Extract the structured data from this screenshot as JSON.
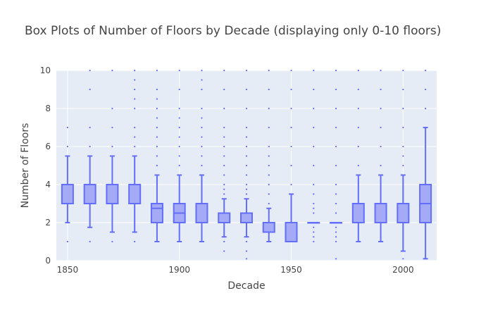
{
  "chart_data": {
    "type": "box",
    "title": "Box Plots of Number of Floors by Decade (displaying only 0-10 floors)",
    "xlabel": "Decade",
    "ylabel": "Number of Floors",
    "xlim": [
      1845,
      2015
    ],
    "ylim": [
      0,
      10
    ],
    "xticks": [
      1850,
      1900,
      1950,
      2000
    ],
    "yticks": [
      0,
      2,
      4,
      6,
      8,
      10
    ],
    "grid": true,
    "legend": "none",
    "colors": {
      "plot_bg": "#e5ecf6",
      "box_line": "#636efa",
      "box_fill": "#a4aaf5",
      "grid": "#ffffff"
    },
    "boxes": [
      {
        "decade": 1850,
        "q1": 3,
        "median": 3,
        "q3": 4,
        "lower": 2,
        "upper": 5.5,
        "outliers": [
          1,
          6,
          7
        ]
      },
      {
        "decade": 1860,
        "q1": 3,
        "median": 3,
        "q3": 4,
        "lower": 1.75,
        "upper": 5.5,
        "outliers": [
          1,
          6,
          7,
          9,
          10
        ]
      },
      {
        "decade": 1870,
        "q1": 3,
        "median": 3,
        "q3": 4,
        "lower": 1.5,
        "upper": 5.5,
        "outliers": [
          1,
          6,
          7,
          8,
          10
        ]
      },
      {
        "decade": 1880,
        "q1": 3,
        "median": 3,
        "q3": 4,
        "lower": 1.5,
        "upper": 5.5,
        "outliers": [
          1,
          6,
          6.5,
          7,
          8,
          8.5,
          9,
          9.5,
          10
        ]
      },
      {
        "decade": 1890,
        "q1": 2,
        "median": 2.75,
        "q3": 3,
        "lower": 1,
        "upper": 4.5,
        "outliers": [
          5,
          5.5,
          6,
          6.5,
          7,
          7.5,
          8,
          8.5,
          9,
          10
        ]
      },
      {
        "decade": 1900,
        "q1": 2,
        "median": 2.5,
        "q3": 3,
        "lower": 1,
        "upper": 4.5,
        "outliers": [
          5,
          5.5,
          6,
          6.5,
          7,
          7.5,
          8,
          9,
          10
        ]
      },
      {
        "decade": 1910,
        "q1": 2,
        "median": 2,
        "q3": 3,
        "lower": 1,
        "upper": 4.5,
        "outliers": [
          5,
          5.5,
          6,
          6.5,
          7,
          7.5,
          8,
          9,
          9.5,
          10
        ]
      },
      {
        "decade": 1920,
        "q1": 2,
        "median": 2,
        "q3": 2.5,
        "lower": 1.25,
        "upper": 3.25,
        "outliers": [
          0.5,
          1,
          3.5,
          3.75,
          4,
          4.5,
          5,
          5.5,
          6,
          6.5,
          7,
          8,
          9,
          10
        ]
      },
      {
        "decade": 1930,
        "q1": 2,
        "median": 2,
        "q3": 2.5,
        "lower": 1.25,
        "upper": 3.25,
        "outliers": [
          0.1,
          0.5,
          1,
          3.5,
          3.75,
          4,
          4.5,
          5,
          5.5,
          6,
          6.5,
          7,
          8,
          9,
          10
        ]
      },
      {
        "decade": 1940,
        "q1": 1.5,
        "median": 2,
        "q3": 2,
        "lower": 1,
        "upper": 2.75,
        "outliers": [
          3,
          3.5,
          4,
          4.5,
          5,
          5.5,
          6,
          7,
          8,
          9,
          10
        ]
      },
      {
        "decade": 1950,
        "q1": 1,
        "median": 2,
        "q3": 2,
        "lower": 1,
        "upper": 3.5,
        "outliers": [
          4,
          5,
          6,
          7,
          8,
          9,
          10
        ]
      },
      {
        "decade": 1960,
        "q1": 2,
        "median": 2,
        "q3": 2,
        "lower": 2,
        "upper": 2,
        "outliers": [
          1,
          1.25,
          1.5,
          1.75,
          2.5,
          2.75,
          3,
          3.5,
          4,
          5,
          6,
          7,
          8,
          9,
          10
        ]
      },
      {
        "decade": 1970,
        "q1": 2,
        "median": 2,
        "q3": 2,
        "lower": 2,
        "upper": 2,
        "outliers": [
          0.1,
          1,
          1.25,
          1.5,
          1.75,
          2.5,
          3,
          3.5,
          4,
          5,
          6,
          7,
          8,
          9,
          10
        ]
      },
      {
        "decade": 1980,
        "q1": 2,
        "median": 2,
        "q3": 3,
        "lower": 1,
        "upper": 4.5,
        "outliers": [
          5,
          6,
          7,
          8,
          9,
          10
        ]
      },
      {
        "decade": 1990,
        "q1": 2,
        "median": 2,
        "q3": 3,
        "lower": 1,
        "upper": 4.5,
        "outliers": [
          5,
          6,
          7,
          8,
          9,
          10
        ]
      },
      {
        "decade": 2000,
        "q1": 2,
        "median": 2,
        "q3": 3,
        "lower": 0.5,
        "upper": 4.5,
        "outliers": [
          0.1,
          5,
          5.5,
          6,
          7,
          8,
          9,
          10
        ]
      },
      {
        "decade": 2010,
        "q1": 2,
        "median": 3,
        "q3": 4,
        "lower": 0.1,
        "upper": 7,
        "outliers": [
          8,
          9,
          10
        ]
      }
    ]
  }
}
